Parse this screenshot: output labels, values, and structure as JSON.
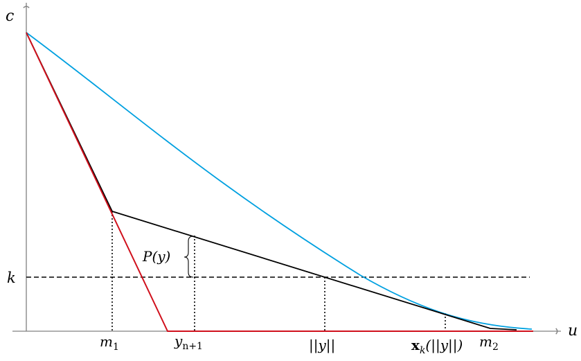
{
  "axes": {
    "y_label": "c",
    "x_label": "u"
  },
  "labels": {
    "k": "k",
    "m1_base": "m",
    "m1_sub": "1",
    "y_base": "y",
    "y_sub": "n+1",
    "norm_y": "||y||",
    "xk_bold": "x",
    "xk_sub": "k",
    "xk_arg": "(||y||)",
    "m2_base": "m",
    "m2_sub": "2",
    "p_of_y": "P(y)"
  },
  "colors": {
    "axis": "#808080",
    "blue_curve": "#00a0e0",
    "black_line": "#000000",
    "red_line": "#d0101c",
    "dashed": "#000000"
  }
}
